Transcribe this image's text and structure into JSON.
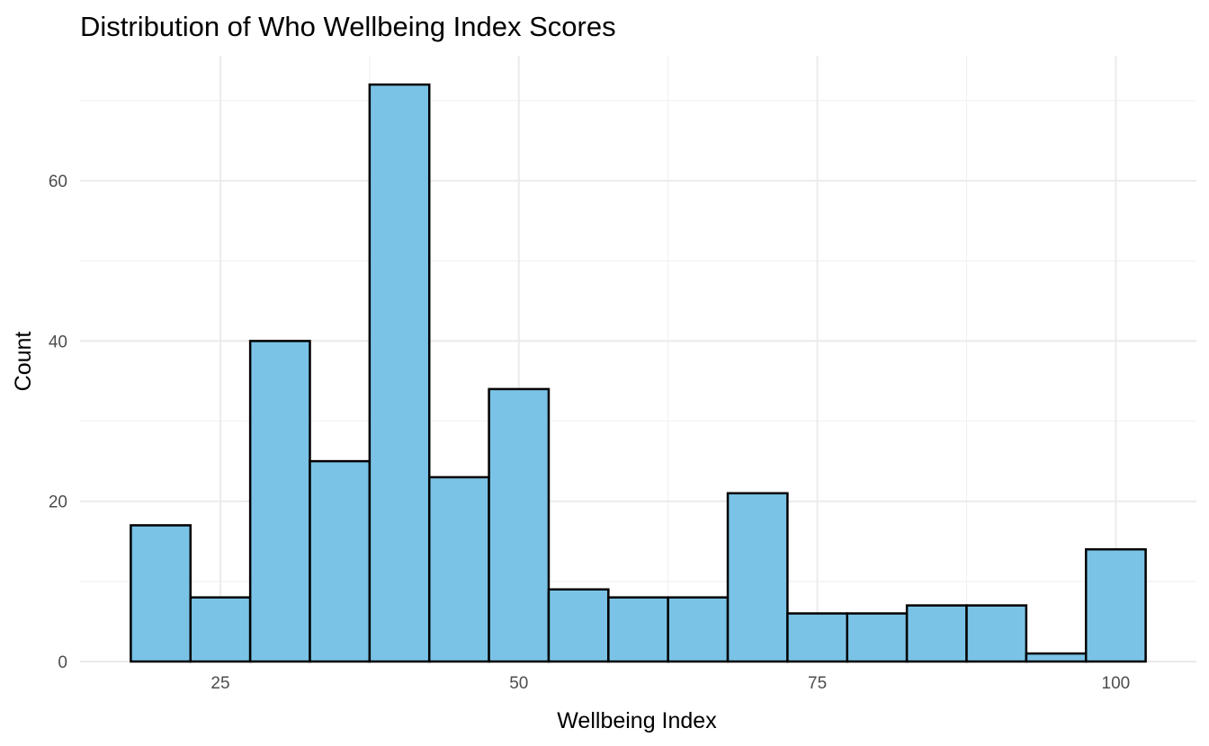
{
  "chart_data": {
    "type": "bar",
    "title": "Distribution of Who Wellbeing Index Scores",
    "xlabel": "Wellbeing Index",
    "ylabel": "Count",
    "bin_width": 5,
    "bin_edges": [
      17.5,
      22.5,
      27.5,
      32.5,
      37.5,
      42.5,
      47.5,
      52.5,
      57.5,
      62.5,
      67.5,
      72.5,
      77.5,
      82.5,
      87.5,
      92.5,
      97.5,
      102.5
    ],
    "values": [
      17,
      8,
      40,
      25,
      72,
      23,
      34,
      9,
      8,
      8,
      21,
      6,
      6,
      7,
      7,
      1,
      14
    ],
    "xlim": [
      13.25,
      106.75
    ],
    "ylim": [
      0,
      75.6
    ],
    "x_ticks": [
      25,
      50,
      75,
      100
    ],
    "x_tick_labels": [
      "25",
      "50",
      "75",
      "100"
    ],
    "y_ticks": [
      0,
      20,
      40,
      60
    ],
    "y_tick_labels": [
      "0",
      "20",
      "40",
      "60"
    ],
    "x_minor_ticks": [
      37.5,
      62.5,
      87.5
    ],
    "y_minor_ticks": [
      10,
      30,
      50,
      70
    ],
    "grid": true,
    "legend": "none",
    "bar_fill": "#7ac3e6",
    "bar_outline": "#000000"
  }
}
